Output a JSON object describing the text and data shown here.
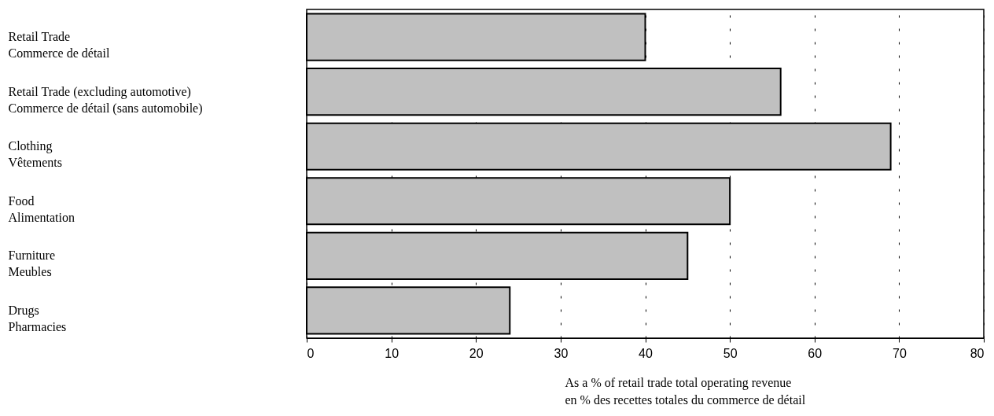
{
  "chart_data": {
    "type": "bar",
    "orientation": "horizontal",
    "categories": [
      "Retail Trade\nCommerce de détail",
      "Retail Trade (excluding automotive)\nCommerce de détail (sans automobile)",
      "Clothing\nVêtements",
      "Food\nAlimentation",
      "Furniture\nMeubles",
      "Drugs\nPharmacies"
    ],
    "values": [
      40,
      56,
      69,
      50,
      45,
      24
    ],
    "color": "#c0c0c0",
    "xlabel": "As a % of retail trade total operating revenue\nen % des recettes totales du commerce de détail",
    "xlim": [
      0,
      80
    ],
    "xticks": [
      0,
      10,
      20,
      30,
      40,
      50,
      60,
      70,
      80
    ],
    "grid": "x"
  }
}
